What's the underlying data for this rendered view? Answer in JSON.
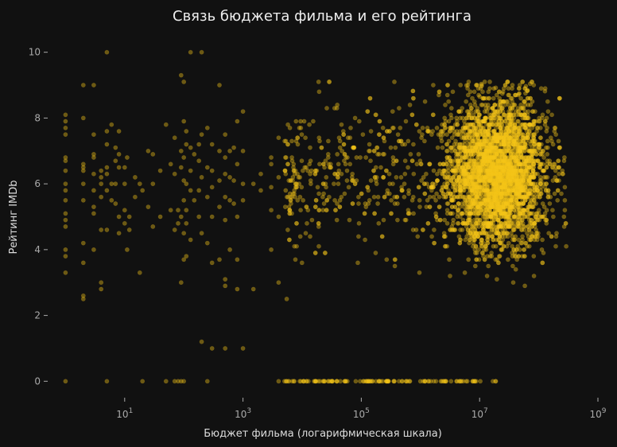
{
  "chart_data": {
    "type": "scatter",
    "title": "Связь бюджета фильма и его рейтинга",
    "xlabel": "Бюджет фильма (логарифмическая шкала)",
    "ylabel": "Рейтинг IMDb",
    "x_scale": "log",
    "xlim": [
      0.5,
      1000000000
    ],
    "ylim": [
      -0.5,
      10.5
    ],
    "x_ticks": [
      {
        "value": 10,
        "base": "10",
        "exp": "1"
      },
      {
        "value": 1000,
        "base": "10",
        "exp": "3"
      },
      {
        "value": 100000,
        "base": "10",
        "exp": "5"
      },
      {
        "value": 10000000,
        "base": "10",
        "exp": "7"
      },
      {
        "value": 1000000000,
        "base": "10",
        "exp": "9"
      }
    ],
    "y_ticks": [
      {
        "value": 0,
        "label": "0"
      },
      {
        "value": 2,
        "label": "2"
      },
      {
        "value": 4,
        "label": "4"
      },
      {
        "value": 6,
        "label": "6"
      },
      {
        "value": 8,
        "label": "8"
      },
      {
        "value": 10,
        "label": "10"
      }
    ],
    "grid": false,
    "point_color": "#f5c518",
    "point_opacity": 0.4,
    "series": [
      {
        "points": [
          [
            1,
            8.1
          ],
          [
            1,
            7.9
          ],
          [
            1,
            7.7
          ],
          [
            1,
            7.5
          ],
          [
            1,
            6.8
          ],
          [
            1,
            6.7
          ],
          [
            1,
            6.4
          ],
          [
            1,
            6.0
          ],
          [
            1,
            5.8
          ],
          [
            1,
            5.5
          ],
          [
            1,
            5.1
          ],
          [
            1,
            4.9
          ],
          [
            1,
            4.7
          ],
          [
            1,
            4.0
          ],
          [
            1,
            3.8
          ],
          [
            1,
            3.3
          ],
          [
            1,
            0
          ],
          [
            2,
            9.0
          ],
          [
            2,
            8.0
          ],
          [
            2,
            6.6
          ],
          [
            2,
            6.5
          ],
          [
            2,
            6.4
          ],
          [
            2,
            6.0
          ],
          [
            2,
            5.5
          ],
          [
            2,
            4.2
          ],
          [
            2,
            3.6
          ],
          [
            2,
            2.6
          ],
          [
            2,
            2.5
          ],
          [
            3,
            9.0
          ],
          [
            3,
            7.5
          ],
          [
            3,
            6.9
          ],
          [
            3,
            6.8
          ],
          [
            3,
            6.3
          ],
          [
            3,
            5.8
          ],
          [
            3,
            5.3
          ],
          [
            3,
            5.1
          ],
          [
            3,
            4.0
          ],
          [
            4,
            6.4
          ],
          [
            4,
            6.2
          ],
          [
            4,
            6.0
          ],
          [
            4,
            5.6
          ],
          [
            4,
            4.6
          ],
          [
            4,
            3.0
          ],
          [
            4,
            2.8
          ],
          [
            5,
            10.0
          ],
          [
            5,
            7.6
          ],
          [
            5,
            7.2
          ],
          [
            5,
            6.5
          ],
          [
            5,
            6.3
          ],
          [
            5,
            5.8
          ],
          [
            5,
            4.6
          ],
          [
            5,
            0
          ],
          [
            6,
            7.8
          ],
          [
            6,
            6.0
          ],
          [
            6,
            5.5
          ],
          [
            7,
            7.1
          ],
          [
            7,
            6.7
          ],
          [
            7,
            6.0
          ],
          [
            7,
            5.4
          ],
          [
            8,
            7.6
          ],
          [
            8,
            6.9
          ],
          [
            8,
            6.5
          ],
          [
            8,
            5.0
          ],
          [
            8,
            4.5
          ],
          [
            10,
            6.5
          ],
          [
            10,
            6.0
          ],
          [
            10,
            5.2
          ],
          [
            10,
            4.8
          ],
          [
            11,
            6.8
          ],
          [
            11,
            4.0
          ],
          [
            12,
            5.0
          ],
          [
            12,
            4.6
          ],
          [
            15,
            6.2
          ],
          [
            15,
            5.6
          ],
          [
            18,
            3.3
          ],
          [
            18,
            6.0
          ],
          [
            20,
            5.8
          ],
          [
            20,
            0
          ],
          [
            25,
            7.0
          ],
          [
            25,
            5.3
          ],
          [
            30,
            6.9
          ],
          [
            30,
            6.0
          ],
          [
            30,
            4.7
          ],
          [
            40,
            6.4
          ],
          [
            40,
            5.0
          ],
          [
            50,
            7.8
          ],
          [
            50,
            0
          ],
          [
            60,
            6.6
          ],
          [
            60,
            5.2
          ],
          [
            70,
            7.4
          ],
          [
            70,
            6.3
          ],
          [
            70,
            4.6
          ],
          [
            70,
            0
          ],
          [
            80,
            5.2
          ],
          [
            80,
            4.8
          ],
          [
            80,
            0
          ],
          [
            90,
            9.3
          ],
          [
            90,
            7.0
          ],
          [
            90,
            6.5
          ],
          [
            90,
            5.0
          ],
          [
            90,
            3.0
          ],
          [
            90,
            0
          ],
          [
            100,
            9.1
          ],
          [
            100,
            7.9
          ],
          [
            100,
            6.8
          ],
          [
            100,
            6.1
          ],
          [
            100,
            5.5
          ],
          [
            100,
            4.5
          ],
          [
            100,
            3.7
          ],
          [
            100,
            0
          ],
          [
            110,
            7.6
          ],
          [
            110,
            7.2
          ],
          [
            110,
            6.0
          ],
          [
            110,
            5.2
          ],
          [
            110,
            4.8
          ],
          [
            110,
            3.8
          ],
          [
            130,
            10.0
          ],
          [
            130,
            7.1
          ],
          [
            130,
            6.4
          ],
          [
            130,
            5.8
          ],
          [
            130,
            4.3
          ],
          [
            150,
            6.9
          ],
          [
            150,
            5.5
          ],
          [
            180,
            7.2
          ],
          [
            180,
            6.7
          ],
          [
            180,
            5.8
          ],
          [
            180,
            5.0
          ],
          [
            200,
            10.0
          ],
          [
            200,
            7.5
          ],
          [
            200,
            6.2
          ],
          [
            200,
            4.5
          ],
          [
            200,
            1.2
          ],
          [
            250,
            7.7
          ],
          [
            250,
            6.5
          ],
          [
            250,
            5.6
          ],
          [
            250,
            4.2
          ],
          [
            250,
            0
          ],
          [
            300,
            7.2
          ],
          [
            300,
            6.4
          ],
          [
            300,
            5.9
          ],
          [
            300,
            5.0
          ],
          [
            300,
            3.6
          ],
          [
            300,
            1.0
          ],
          [
            400,
            9.0
          ],
          [
            400,
            7.0
          ],
          [
            400,
            6.1
          ],
          [
            400,
            5.3
          ],
          [
            400,
            3.7
          ],
          [
            500,
            7.5
          ],
          [
            500,
            6.8
          ],
          [
            500,
            6.3
          ],
          [
            500,
            5.6
          ],
          [
            500,
            4.9
          ],
          [
            500,
            3.1
          ],
          [
            500,
            2.9
          ],
          [
            500,
            1.0
          ],
          [
            600,
            7.0
          ],
          [
            600,
            6.2
          ],
          [
            600,
            5.5
          ],
          [
            600,
            4.0
          ],
          [
            700,
            7.1
          ],
          [
            700,
            6.1
          ],
          [
            700,
            5.4
          ],
          [
            800,
            7.9
          ],
          [
            800,
            6.6
          ],
          [
            800,
            5.0
          ],
          [
            800,
            3.7
          ],
          [
            800,
            2.8
          ],
          [
            1000,
            8.2
          ],
          [
            1000,
            7.0
          ],
          [
            1000,
            6.0
          ],
          [
            1000,
            5.5
          ],
          [
            1000,
            1.0
          ],
          [
            1500,
            6.0
          ],
          [
            1500,
            2.8
          ],
          [
            2000,
            6.3
          ],
          [
            2000,
            5.8
          ],
          [
            3000,
            6.8
          ],
          [
            3000,
            6.6
          ],
          [
            3000,
            5.9
          ],
          [
            3000,
            5.2
          ],
          [
            3000,
            4.0
          ],
          [
            4000,
            7.4
          ],
          [
            4000,
            6.2
          ],
          [
            4000,
            5.0
          ],
          [
            4000,
            3.0
          ],
          [
            4000,
            0
          ]
        ]
      }
    ],
    "dense_cloud": {
      "x_range": [
        5000,
        300000000
      ],
      "center_x": 20000000,
      "center_y": 6.3,
      "y_spread": 1.1,
      "point_count": 4200
    },
    "zero_rating_band": {
      "y": 0,
      "x_range": [
        5000,
        20000000
      ],
      "point_count": 120
    }
  }
}
